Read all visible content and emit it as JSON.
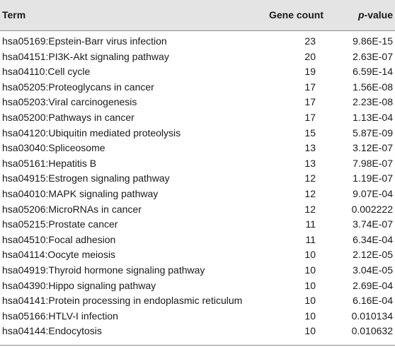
{
  "header": {
    "term": "Term",
    "gene_count": "Gene count",
    "p_value_italic": "p",
    "p_value_suffix": "-value"
  },
  "rows": [
    {
      "term": "hsa05169:Epstein-Barr virus infection",
      "count": "23",
      "p": "9.86E-15"
    },
    {
      "term": "hsa04151:PI3K-Akt signaling pathway",
      "count": "20",
      "p": "2.63E-07"
    },
    {
      "term": "hsa04110:Cell cycle",
      "count": "19",
      "p": "6.59E-14"
    },
    {
      "term": "hsa05205:Proteoglycans in cancer",
      "count": "17",
      "p": "1.56E-08"
    },
    {
      "term": "hsa05203:Viral carcinogenesis",
      "count": "17",
      "p": "2.23E-08"
    },
    {
      "term": "hsa05200:Pathways in cancer",
      "count": "17",
      "p": "1.13E-04"
    },
    {
      "term": "hsa04120:Ubiquitin mediated proteolysis",
      "count": "15",
      "p": "5.87E-09"
    },
    {
      "term": "hsa03040:Spliceosome",
      "count": "13",
      "p": "3.12E-07"
    },
    {
      "term": "hsa05161:Hepatitis B",
      "count": "13",
      "p": "7.98E-07"
    },
    {
      "term": "hsa04915:Estrogen signaling pathway",
      "count": "12",
      "p": "1.19E-07"
    },
    {
      "term": "hsa04010:MAPK signaling pathway",
      "count": "12",
      "p": "9.07E-04"
    },
    {
      "term": "hsa05206:MicroRNAs in cancer",
      "count": "12",
      "p": "0.002222"
    },
    {
      "term": "hsa05215:Prostate cancer",
      "count": "11",
      "p": "3.74E-07"
    },
    {
      "term": "hsa04510:Focal adhesion",
      "count": "11",
      "p": "6.34E-04"
    },
    {
      "term": "hsa04114:Oocyte meiosis",
      "count": "10",
      "p": "2.12E-05"
    },
    {
      "term": "hsa04919:Thyroid hormone signaling pathway",
      "count": "10",
      "p": "3.04E-05"
    },
    {
      "term": "hsa04390:Hippo signaling pathway",
      "count": "10",
      "p": "2.69E-04"
    },
    {
      "term": "hsa04141:Protein processing in endoplasmic reticulum",
      "count": "10",
      "p": "6.16E-04"
    },
    {
      "term": "hsa05166:HTLV-I infection",
      "count": "10",
      "p": "0.010134"
    },
    {
      "term": "hsa04144:Endocytosis",
      "count": "10",
      "p": "0.010632"
    }
  ]
}
